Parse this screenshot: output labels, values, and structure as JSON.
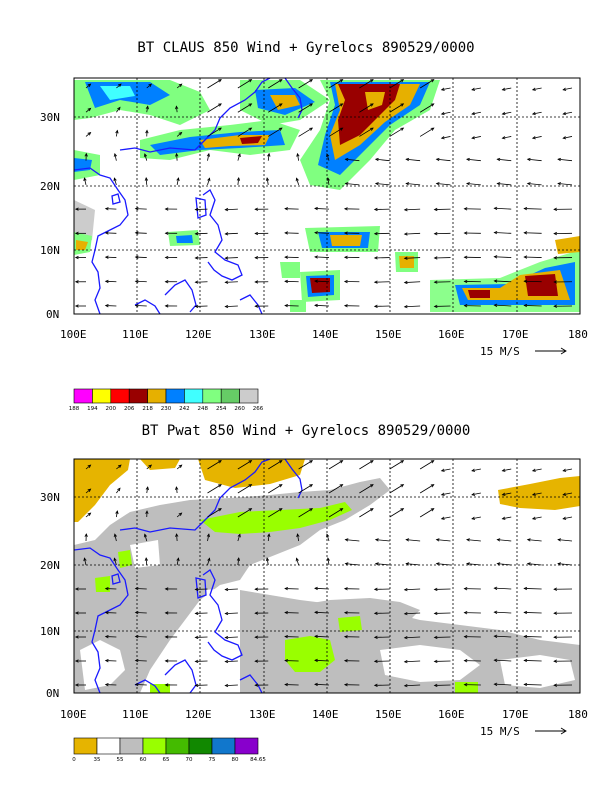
{
  "panel1": {
    "title": "BT CLAUS 850 Wind + Gyrelocs 890529/0000",
    "lat_labels": [
      "30N",
      "20N",
      "10N",
      "0N"
    ],
    "lon_labels": [
      "100E",
      "110E",
      "120E",
      "130E",
      "140E",
      "150E",
      "160E",
      "170E",
      "180"
    ],
    "vector_ref": "15 M/S",
    "colorbar": {
      "labels": [
        "188",
        "194",
        "200",
        "206",
        "218",
        "230",
        "242",
        "248",
        "254",
        "260",
        "266"
      ],
      "colors": [
        "#ff00ff",
        "#ffff00",
        "#ff0000",
        "#990000",
        "#e6b000",
        "#0080ff",
        "#40ffff",
        "#80ff80",
        "#66cc66",
        "#cccccc"
      ]
    }
  },
  "panel2": {
    "title": "BT Pwat 850 Wind + Gyrelocs 890529/0000",
    "lat_labels": [
      "30N",
      "20N",
      "10N",
      "0N"
    ],
    "lon_labels": [
      "100E",
      "110E",
      "120E",
      "130E",
      "140E",
      "150E",
      "160E",
      "170E",
      "180"
    ],
    "vector_ref": "15 M/S",
    "colorbar": {
      "labels": [
        "0",
        "35",
        "55",
        "60",
        "65",
        "70",
        "75",
        "80",
        "84.65"
      ],
      "colors": [
        "#e6b400",
        "#ffffff",
        "#bebebe",
        "#99ff00",
        "#44bb00",
        "#118800",
        "#1177cc",
        "#8800cc"
      ]
    }
  }
}
